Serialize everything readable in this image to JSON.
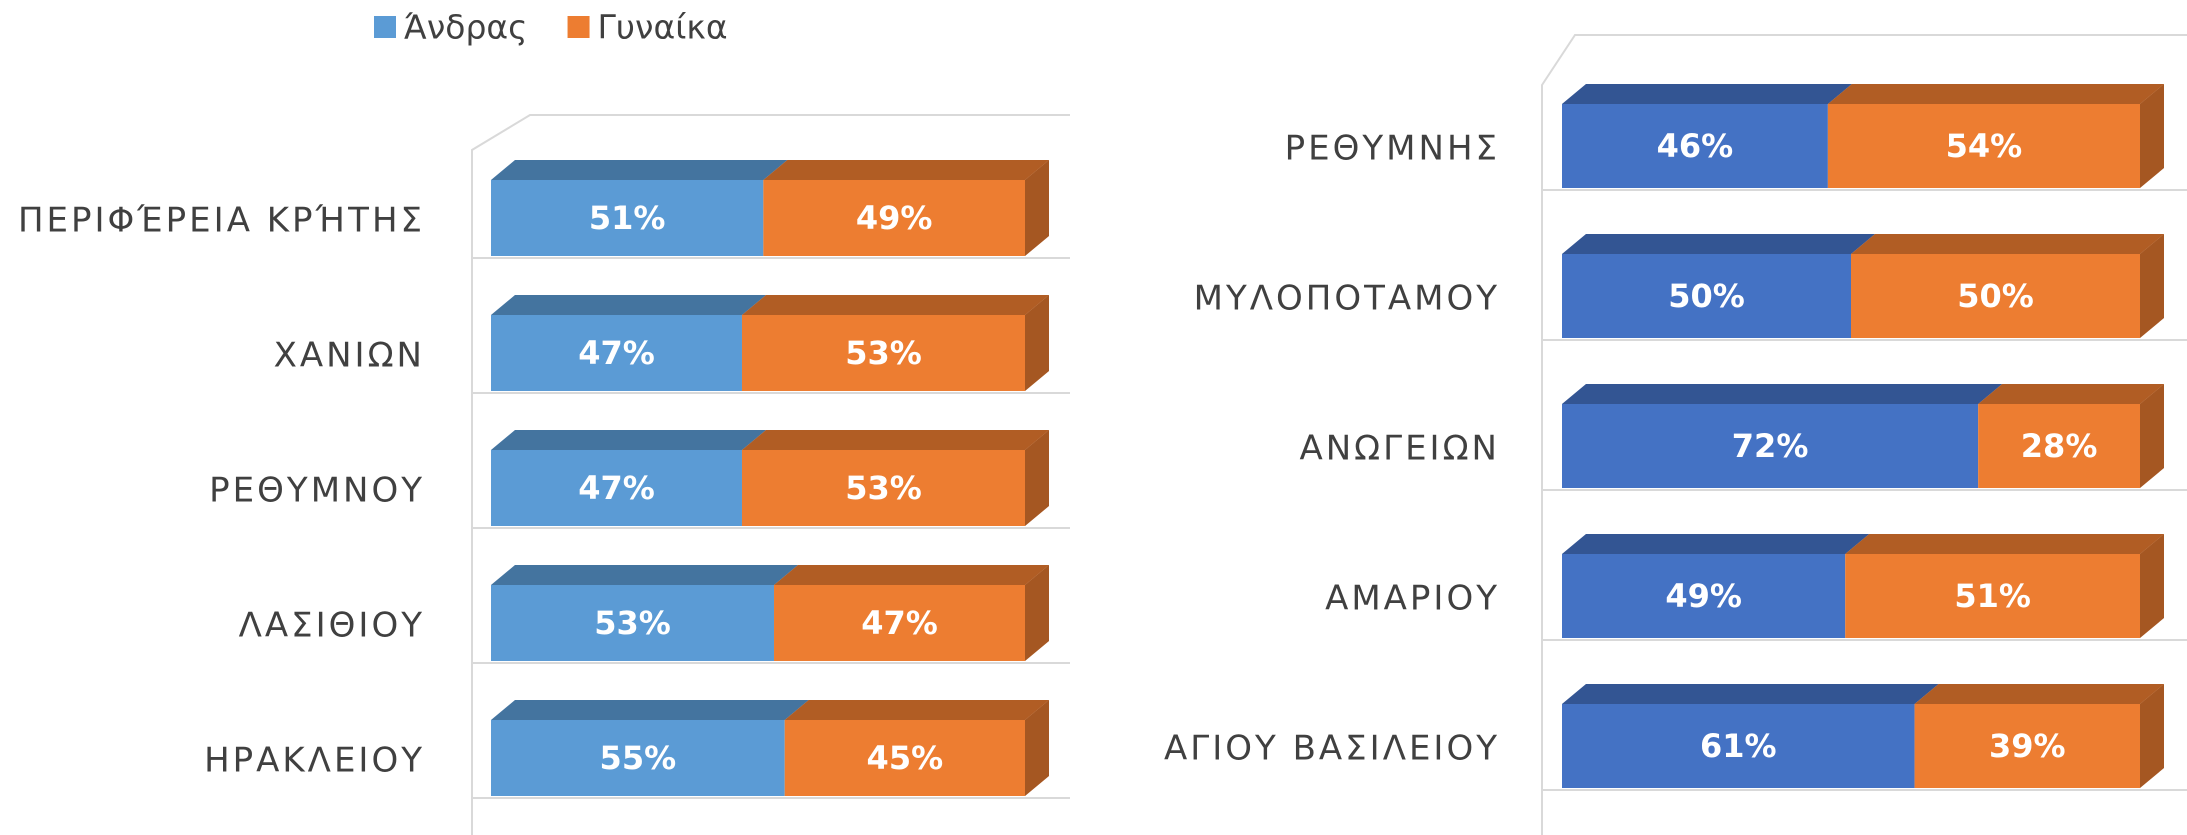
{
  "chart_data": [
    {
      "type": "bar",
      "orientation": "horizontal",
      "stacked": true,
      "categories": [
        "ΠΕΡΙΦΈΡΕΙΑ ΚΡΉΤΗΣ",
        "ΧΑΝΙΩΝ",
        "ΡΕΘΥΜΝΟΥ",
        "ΛΑΣΙΘΙΟΥ",
        "ΗΡΑΚΛΕΙΟΥ"
      ],
      "series": [
        {
          "name": "Άνδρας",
          "color": "#5b9bd5",
          "values": [
            51,
            47,
            47,
            53,
            55
          ],
          "value_labels": [
            "51%",
            "47%",
            "47%",
            "53%",
            "55%"
          ]
        },
        {
          "name": "Γυναίκα",
          "color": "#ed7d31",
          "values": [
            49,
            53,
            53,
            47,
            45
          ],
          "value_labels": [
            "49%",
            "53%",
            "53%",
            "47%",
            "45%"
          ]
        }
      ],
      "xlim": [
        0,
        100
      ],
      "legend": "top"
    },
    {
      "type": "bar",
      "orientation": "horizontal",
      "stacked": true,
      "categories": [
        "ΡΕΘΥΜΝΗΣ",
        "ΜΥΛΟΠΟΤΑΜΟΥ",
        "ΑΝΩΓΕΙΩΝ",
        "ΑΜΑΡΙΟΥ",
        "ΑΓΙΟΥ ΒΑΣΙΛΕΙΟΥ"
      ],
      "series": [
        {
          "color": "#4472c4",
          "values": [
            46,
            50,
            72,
            49,
            61
          ],
          "value_labels": [
            "46%",
            "50%",
            "72%",
            "49%",
            "61%"
          ]
        },
        {
          "color": "#ed7d31",
          "values": [
            54,
            50,
            28,
            51,
            39
          ],
          "value_labels": [
            "54%",
            "50%",
            "28%",
            "51%",
            "39%"
          ]
        }
      ],
      "xlim": [
        0,
        100
      ]
    }
  ]
}
